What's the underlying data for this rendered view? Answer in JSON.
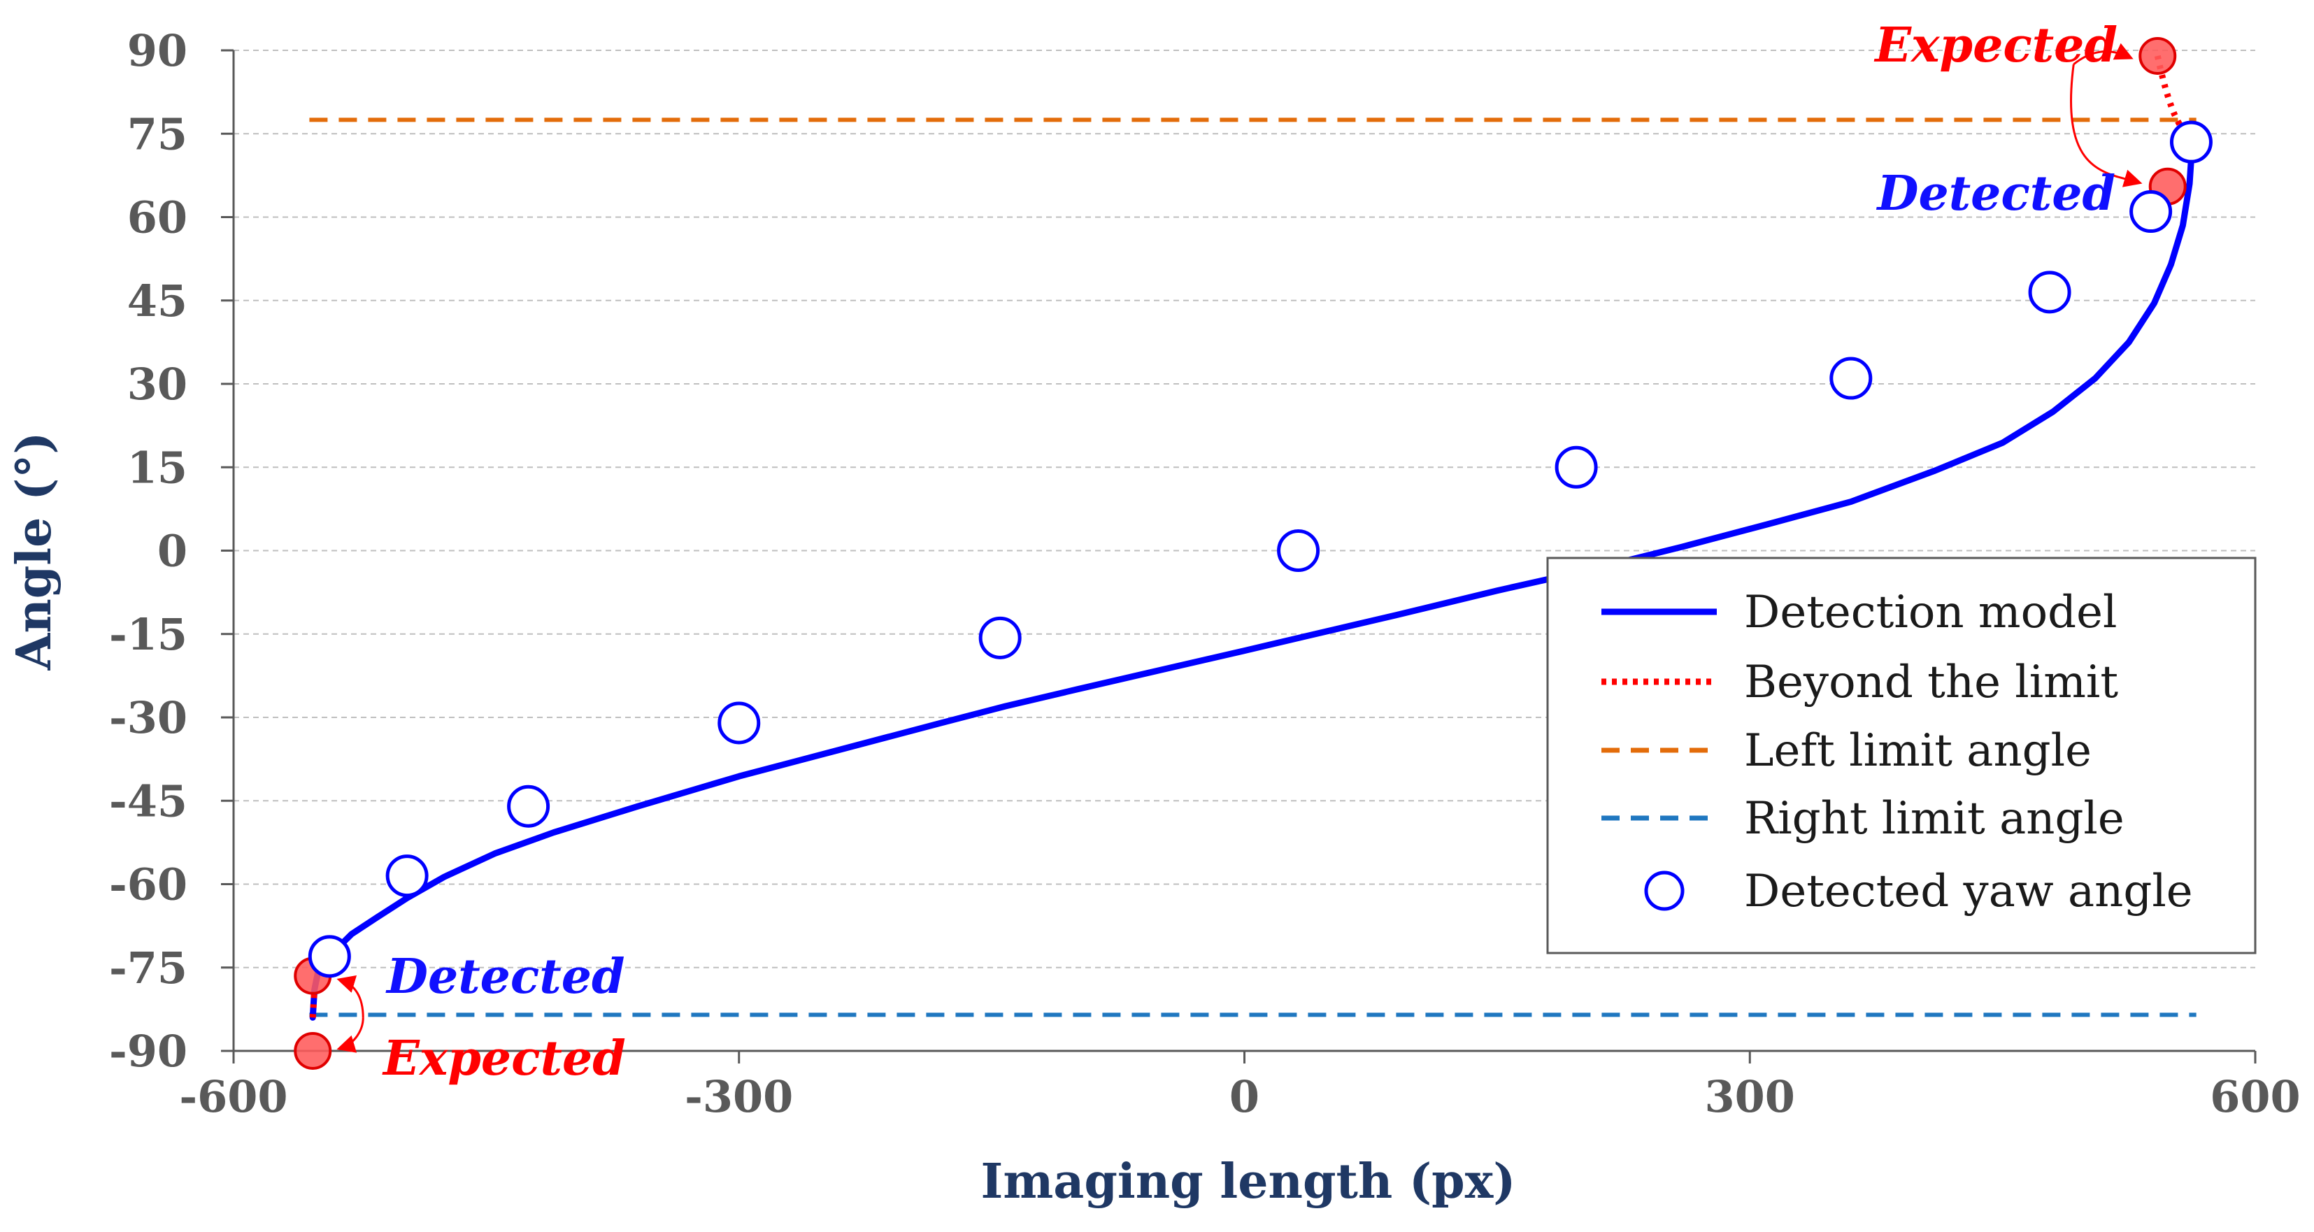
{
  "chart_data": {
    "type": "line",
    "xlabel": "Imaging length (px)",
    "ylabel": "Angle (°)",
    "xlim": [
      -600,
      600
    ],
    "ylim": [
      -90,
      90
    ],
    "x_ticks": [
      -600,
      -300,
      0,
      300,
      600
    ],
    "y_ticks": [
      90,
      75,
      60,
      45,
      30,
      15,
      0,
      -15,
      -30,
      -45,
      -60,
      -75,
      -90
    ],
    "x_tick_labels": [
      "-600",
      "-300",
      "0",
      "300",
      "600"
    ],
    "y_tick_labels": [
      "90",
      "75",
      "60",
      "45",
      "30",
      "15",
      "0",
      "-15",
      "-30",
      "-45",
      "-60",
      "-75",
      "-90"
    ],
    "grid": "horizontal dashed",
    "series": [
      {
        "name": "Detection model",
        "style": "solid",
        "color": "#0000ff",
        "x": [
          -553,
          -552,
          -550,
          -546,
          -540,
          -530,
          -515,
          -497,
          -475,
          -445,
          -410,
          -360,
          -300,
          -240,
          -180,
          -142,
          -100,
          -50,
          0,
          35,
          90,
          150,
          200,
          260,
          310,
          360,
          410,
          450,
          480,
          505,
          525,
          540,
          550,
          557,
          561,
          563
        ],
        "y": [
          -84,
          -79,
          -76,
          -74,
          -72,
          -69,
          -66,
          -62.5,
          -58.7,
          -54.5,
          -50.7,
          -46,
          -40.6,
          -35.8,
          -31,
          -28,
          -25,
          -21.5,
          -18,
          -15.5,
          -11.6,
          -7.2,
          -3.8,
          0.7,
          4.7,
          8.8,
          14.4,
          19.4,
          25,
          31,
          37.5,
          44.5,
          51.5,
          58.5,
          66,
          75
        ]
      },
      {
        "name": "Beyond the limit",
        "style": "dotted",
        "color": "#ff0000",
        "x": [
          -553,
          -552
        ],
        "y": [
          -84,
          -79
        ]
      },
      {
        "name": "Left limit angle",
        "style": "dashed",
        "color": "#e36c0a",
        "x": [
          -555,
          565
        ],
        "y": [
          77.5,
          77.5
        ]
      },
      {
        "name": "Right limit angle",
        "style": "dashed",
        "color": "#1f77c0",
        "x": [
          -555,
          565
        ],
        "y": [
          -83.5,
          -83.5
        ]
      },
      {
        "name": "Detected yaw angle",
        "style": "marker",
        "color": "#0000ff",
        "x": [
          -543,
          -497,
          -425,
          -300,
          -145,
          32,
          197,
          360,
          478,
          538,
          562
        ],
        "y": [
          -73,
          -58.5,
          -46,
          -31,
          -15.7,
          0,
          15,
          31,
          46.5,
          61,
          73.5
        ]
      }
    ],
    "expected_points": {
      "x": [
        -553,
        -553,
        548,
        542
      ],
      "y": [
        -76.5,
        -90,
        65.5,
        89
      ]
    },
    "annotations": [
      {
        "text": "Expected",
        "color": "#ff0000",
        "position": "top-right"
      },
      {
        "text": "Detected",
        "color": "#1010ff",
        "position": "top-right"
      },
      {
        "text": "Detected",
        "color": "#1010ff",
        "position": "bottom-left"
      },
      {
        "text": "Expected",
        "color": "#ff0000",
        "position": "bottom-left"
      }
    ],
    "legend": {
      "position": "bottom-right",
      "entries": [
        "Detection model",
        "Beyond the limit",
        "Left limit angle",
        "Right limit angle",
        "Detected yaw angle"
      ]
    }
  }
}
